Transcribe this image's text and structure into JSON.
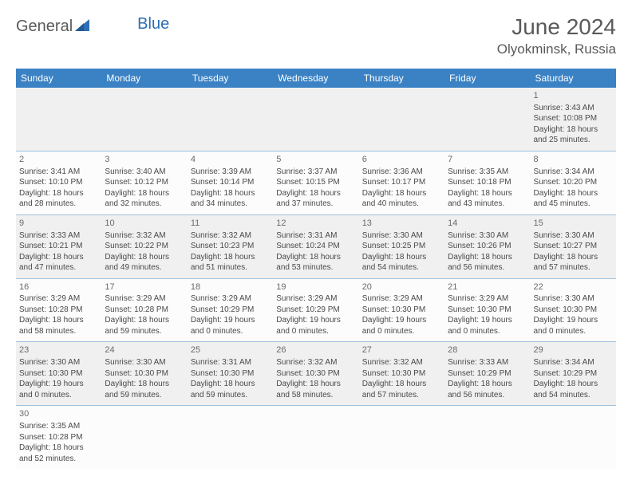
{
  "logo": {
    "part1": "General",
    "part2": "Blue"
  },
  "title": "June 2024",
  "location": "Olyokminsk, Russia",
  "colors": {
    "header_bg": "#3b82c4",
    "header_text": "#ffffff",
    "cell_border": "#9fc0db",
    "text": "#4a4a4a",
    "title_text": "#5a5a5a",
    "logo_accent": "#2d6fb3"
  },
  "dayHeaders": [
    "Sunday",
    "Monday",
    "Tuesday",
    "Wednesday",
    "Thursday",
    "Friday",
    "Saturday"
  ],
  "weeks": [
    [
      null,
      null,
      null,
      null,
      null,
      null,
      {
        "n": "1",
        "sr": "Sunrise: 3:43 AM",
        "ss": "Sunset: 10:08 PM",
        "dl": "Daylight: 18 hours and 25 minutes."
      }
    ],
    [
      {
        "n": "2",
        "sr": "Sunrise: 3:41 AM",
        "ss": "Sunset: 10:10 PM",
        "dl": "Daylight: 18 hours and 28 minutes."
      },
      {
        "n": "3",
        "sr": "Sunrise: 3:40 AM",
        "ss": "Sunset: 10:12 PM",
        "dl": "Daylight: 18 hours and 32 minutes."
      },
      {
        "n": "4",
        "sr": "Sunrise: 3:39 AM",
        "ss": "Sunset: 10:14 PM",
        "dl": "Daylight: 18 hours and 34 minutes."
      },
      {
        "n": "5",
        "sr": "Sunrise: 3:37 AM",
        "ss": "Sunset: 10:15 PM",
        "dl": "Daylight: 18 hours and 37 minutes."
      },
      {
        "n": "6",
        "sr": "Sunrise: 3:36 AM",
        "ss": "Sunset: 10:17 PM",
        "dl": "Daylight: 18 hours and 40 minutes."
      },
      {
        "n": "7",
        "sr": "Sunrise: 3:35 AM",
        "ss": "Sunset: 10:18 PM",
        "dl": "Daylight: 18 hours and 43 minutes."
      },
      {
        "n": "8",
        "sr": "Sunrise: 3:34 AM",
        "ss": "Sunset: 10:20 PM",
        "dl": "Daylight: 18 hours and 45 minutes."
      }
    ],
    [
      {
        "n": "9",
        "sr": "Sunrise: 3:33 AM",
        "ss": "Sunset: 10:21 PM",
        "dl": "Daylight: 18 hours and 47 minutes."
      },
      {
        "n": "10",
        "sr": "Sunrise: 3:32 AM",
        "ss": "Sunset: 10:22 PM",
        "dl": "Daylight: 18 hours and 49 minutes."
      },
      {
        "n": "11",
        "sr": "Sunrise: 3:32 AM",
        "ss": "Sunset: 10:23 PM",
        "dl": "Daylight: 18 hours and 51 minutes."
      },
      {
        "n": "12",
        "sr": "Sunrise: 3:31 AM",
        "ss": "Sunset: 10:24 PM",
        "dl": "Daylight: 18 hours and 53 minutes."
      },
      {
        "n": "13",
        "sr": "Sunrise: 3:30 AM",
        "ss": "Sunset: 10:25 PM",
        "dl": "Daylight: 18 hours and 54 minutes."
      },
      {
        "n": "14",
        "sr": "Sunrise: 3:30 AM",
        "ss": "Sunset: 10:26 PM",
        "dl": "Daylight: 18 hours and 56 minutes."
      },
      {
        "n": "15",
        "sr": "Sunrise: 3:30 AM",
        "ss": "Sunset: 10:27 PM",
        "dl": "Daylight: 18 hours and 57 minutes."
      }
    ],
    [
      {
        "n": "16",
        "sr": "Sunrise: 3:29 AM",
        "ss": "Sunset: 10:28 PM",
        "dl": "Daylight: 18 hours and 58 minutes."
      },
      {
        "n": "17",
        "sr": "Sunrise: 3:29 AM",
        "ss": "Sunset: 10:28 PM",
        "dl": "Daylight: 18 hours and 59 minutes."
      },
      {
        "n": "18",
        "sr": "Sunrise: 3:29 AM",
        "ss": "Sunset: 10:29 PM",
        "dl": "Daylight: 19 hours and 0 minutes."
      },
      {
        "n": "19",
        "sr": "Sunrise: 3:29 AM",
        "ss": "Sunset: 10:29 PM",
        "dl": "Daylight: 19 hours and 0 minutes."
      },
      {
        "n": "20",
        "sr": "Sunrise: 3:29 AM",
        "ss": "Sunset: 10:30 PM",
        "dl": "Daylight: 19 hours and 0 minutes."
      },
      {
        "n": "21",
        "sr": "Sunrise: 3:29 AM",
        "ss": "Sunset: 10:30 PM",
        "dl": "Daylight: 19 hours and 0 minutes."
      },
      {
        "n": "22",
        "sr": "Sunrise: 3:30 AM",
        "ss": "Sunset: 10:30 PM",
        "dl": "Daylight: 19 hours and 0 minutes."
      }
    ],
    [
      {
        "n": "23",
        "sr": "Sunrise: 3:30 AM",
        "ss": "Sunset: 10:30 PM",
        "dl": "Daylight: 19 hours and 0 minutes."
      },
      {
        "n": "24",
        "sr": "Sunrise: 3:30 AM",
        "ss": "Sunset: 10:30 PM",
        "dl": "Daylight: 18 hours and 59 minutes."
      },
      {
        "n": "25",
        "sr": "Sunrise: 3:31 AM",
        "ss": "Sunset: 10:30 PM",
        "dl": "Daylight: 18 hours and 59 minutes."
      },
      {
        "n": "26",
        "sr": "Sunrise: 3:32 AM",
        "ss": "Sunset: 10:30 PM",
        "dl": "Daylight: 18 hours and 58 minutes."
      },
      {
        "n": "27",
        "sr": "Sunrise: 3:32 AM",
        "ss": "Sunset: 10:30 PM",
        "dl": "Daylight: 18 hours and 57 minutes."
      },
      {
        "n": "28",
        "sr": "Sunrise: 3:33 AM",
        "ss": "Sunset: 10:29 PM",
        "dl": "Daylight: 18 hours and 56 minutes."
      },
      {
        "n": "29",
        "sr": "Sunrise: 3:34 AM",
        "ss": "Sunset: 10:29 PM",
        "dl": "Daylight: 18 hours and 54 minutes."
      }
    ],
    [
      {
        "n": "30",
        "sr": "Sunrise: 3:35 AM",
        "ss": "Sunset: 10:28 PM",
        "dl": "Daylight: 18 hours and 52 minutes."
      },
      null,
      null,
      null,
      null,
      null,
      null
    ]
  ]
}
